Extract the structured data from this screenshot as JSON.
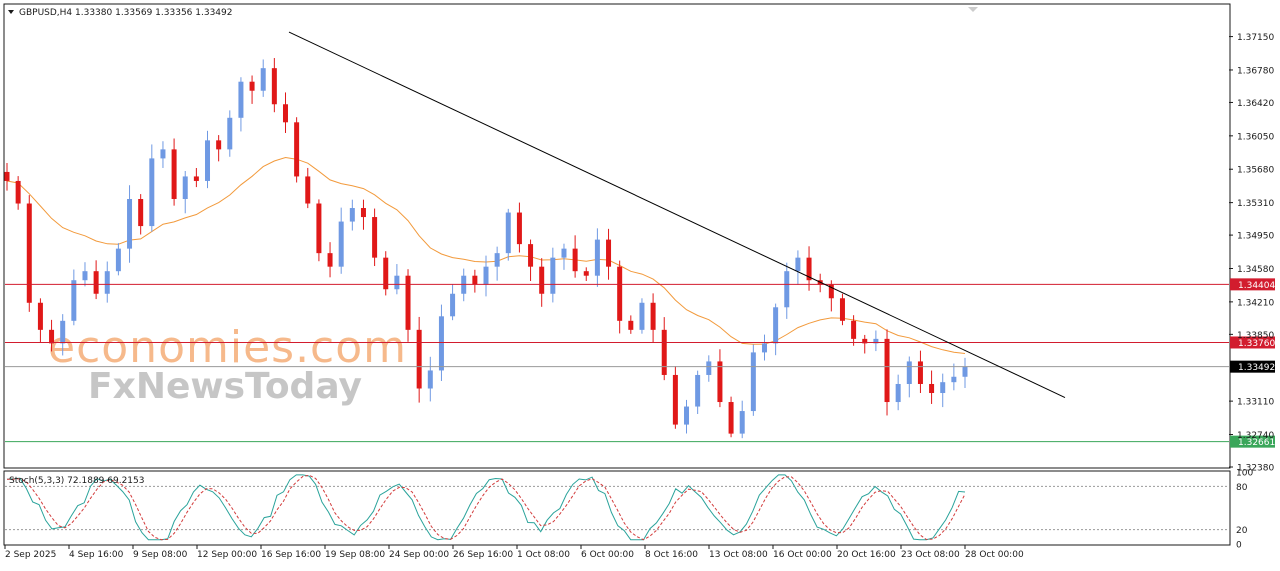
{
  "window": {
    "symbol_info": "GBPUSD,H4  1.33380 1.33569 1.33356 1.33492",
    "stoch_info": "Stoch(5,3,3) 72.1889 69.2153"
  },
  "watermark": {
    "line1": "economies.com",
    "line2": "FxNewsToday"
  },
  "colors": {
    "bull": "#6f99e3",
    "bear": "#e01818",
    "ma": "#f29a3c",
    "trendline": "#000000",
    "resistance": "#d21c2e",
    "support": "#3aa65a",
    "current": "#9a9a9a",
    "stoch_main": "#2aa39b",
    "stoch_signal": "#d23b3b",
    "axis_text": "#1a1a1a"
  },
  "chart_data": [
    {
      "type": "candlestick",
      "symbol": "GBPUSD",
      "timeframe": "H4",
      "ohlc_last": {
        "open": 1.3338,
        "high": 1.33569,
        "low": 1.33356,
        "close": 1.33492
      },
      "ylim": [
        1.3238,
        1.375
      ],
      "y_ticks": [
        "1.37150",
        "1.36780",
        "1.36420",
        "1.36050",
        "1.35680",
        "1.35310",
        "1.34950",
        "1.34580",
        "1.34210",
        "1.33850",
        "1.33110",
        "1.32740",
        "1.32380"
      ],
      "x_ticks": [
        "2 Sep 2025",
        "4 Sep 16:00",
        "9 Sep 08:00",
        "12 Sep 00:00",
        "16 Sep 16:00",
        "19 Sep 08:00",
        "24 Sep 00:00",
        "26 Sep 16:00",
        "1 Oct 08:00",
        "6 Oct 00:00",
        "8 Oct 16:00",
        "13 Oct 08:00",
        "16 Oct 00:00",
        "20 Oct 16:00",
        "23 Oct 08:00",
        "28 Oct 00:00"
      ],
      "closes": [
        1.3555,
        1.353,
        1.342,
        1.339,
        1.3375,
        1.34,
        1.3445,
        1.3455,
        1.343,
        1.3455,
        1.348,
        1.3535,
        1.3505,
        1.358,
        1.359,
        1.3535,
        1.356,
        1.3555,
        1.36,
        1.359,
        1.3625,
        1.3665,
        1.3655,
        1.368,
        1.364,
        1.362,
        1.356,
        1.353,
        1.3475,
        1.346,
        1.351,
        1.3525,
        1.3515,
        1.347,
        1.3435,
        1.345,
        1.339,
        1.3325,
        1.3345,
        1.3405,
        1.343,
        1.345,
        1.344,
        1.346,
        1.3475,
        1.352,
        1.3485,
        1.346,
        1.343,
        1.347,
        1.348,
        1.3455,
        1.345,
        1.349,
        1.346,
        1.34,
        1.339,
        1.342,
        1.339,
        1.334,
        1.3285,
        1.3305,
        1.334,
        1.3355,
        1.331,
        1.3275,
        1.33,
        1.3365,
        1.3375,
        1.3415,
        1.3455,
        1.347,
        1.3445,
        1.344,
        1.3425,
        1.34,
        1.338,
        1.3375,
        1.338,
        1.331,
        1.333,
        1.3355,
        1.333,
        1.332,
        1.3332,
        1.3338,
        1.3349
      ],
      "moving_average": "orange, smoothed trend of closes",
      "horizontal_levels": [
        {
          "price": 1.34404,
          "label": "1.34404",
          "color": "#d21c2e"
        },
        {
          "price": 1.3376,
          "label": "1.33760",
          "color": "#d21c2e"
        },
        {
          "price": 1.33492,
          "label": "1.33492",
          "color": "#9a9a9a"
        },
        {
          "price": 1.32661,
          "label": "1.32661",
          "color": "#3aa65a"
        }
      ],
      "trendline": {
        "from": {
          "x": "16 Sep",
          "price": 1.372
        },
        "to": {
          "x": "28 Oct",
          "price": 1.3315
        }
      }
    },
    {
      "type": "line",
      "indicator": "Stochastic Oscillator",
      "params": "5,3,3",
      "values": {
        "main": 72.1889,
        "signal": 69.2153
      },
      "ylim": [
        0,
        100
      ],
      "levels": [
        80,
        20
      ],
      "y_ticks": [
        "100",
        "80",
        "20",
        "0"
      ]
    }
  ]
}
